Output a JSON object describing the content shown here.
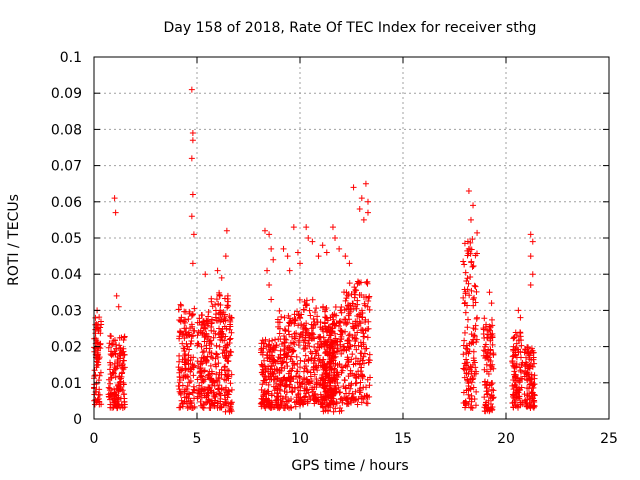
{
  "chart_data": {
    "type": "scatter",
    "title": "Day 158 of 2018, Rate Of TEC Index for receiver sthg",
    "xlabel": "GPS time / hours",
    "ylabel": "ROTI / TECUs",
    "xlim": [
      0,
      25
    ],
    "ylim": [
      0,
      0.1
    ],
    "xticks": [
      0,
      5,
      10,
      15,
      20,
      25
    ],
    "yticks": [
      0,
      0.01,
      0.02,
      0.03,
      0.04,
      0.05,
      0.06,
      0.07,
      0.08,
      0.09,
      0.1
    ],
    "grid": true,
    "marker": "+",
    "color": "#ff0000",
    "series": [
      {
        "name": "ROTI",
        "clusters": [
          {
            "x": [
              0.0,
              0.35
            ],
            "y": [
              0.004,
              0.029
            ]
          },
          {
            "x": [
              0.7,
              1.5
            ],
            "y": [
              0.003,
              0.023
            ]
          },
          {
            "x": [
              4.1,
              4.9
            ],
            "y": [
              0.003,
              0.032
            ]
          },
          {
            "x": [
              5.0,
              5.6
            ],
            "y": [
              0.003,
              0.03
            ]
          },
          {
            "x": [
              5.6,
              6.2
            ],
            "y": [
              0.003,
              0.035
            ]
          },
          {
            "x": [
              6.2,
              6.7
            ],
            "y": [
              0.002,
              0.034
            ]
          },
          {
            "x": [
              8.1,
              8.9
            ],
            "y": [
              0.003,
              0.022
            ]
          },
          {
            "x": [
              8.9,
              9.8
            ],
            "y": [
              0.003,
              0.03
            ]
          },
          {
            "x": [
              9.8,
              10.8
            ],
            "y": [
              0.004,
              0.033
            ]
          },
          {
            "x": [
              10.8,
              11.7
            ],
            "y": [
              0.004,
              0.029
            ]
          },
          {
            "x": [
              11.1,
              12.1
            ],
            "y": [
              0.002,
              0.031
            ]
          },
          {
            "x": [
              12.1,
              13.4
            ],
            "y": [
              0.004,
              0.038
            ]
          },
          {
            "x": [
              17.9,
              18.6
            ],
            "y": [
              0.003,
              0.052
            ]
          },
          {
            "x": [
              18.9,
              19.4
            ],
            "y": [
              0.002,
              0.028
            ]
          },
          {
            "x": [
              20.3,
              20.8
            ],
            "y": [
              0.003,
              0.024
            ]
          },
          {
            "x": [
              20.9,
              21.4
            ],
            "y": [
              0.003,
              0.02
            ]
          }
        ],
        "points": [
          [
            0.15,
            0.03
          ],
          [
            0.2,
            0.026
          ],
          [
            1.0,
            0.061
          ],
          [
            1.05,
            0.057
          ],
          [
            1.1,
            0.034
          ],
          [
            1.2,
            0.031
          ],
          [
            4.75,
            0.091
          ],
          [
            4.8,
            0.079
          ],
          [
            4.8,
            0.077
          ],
          [
            4.75,
            0.072
          ],
          [
            4.8,
            0.062
          ],
          [
            4.75,
            0.056
          ],
          [
            4.85,
            0.051
          ],
          [
            4.8,
            0.043
          ],
          [
            5.4,
            0.04
          ],
          [
            6.0,
            0.041
          ],
          [
            6.2,
            0.039
          ],
          [
            6.45,
            0.052
          ],
          [
            6.4,
            0.045
          ],
          [
            6.5,
            0.034
          ],
          [
            8.3,
            0.052
          ],
          [
            8.5,
            0.051
          ],
          [
            8.6,
            0.047
          ],
          [
            8.7,
            0.044
          ],
          [
            8.4,
            0.041
          ],
          [
            8.5,
            0.037
          ],
          [
            8.6,
            0.033
          ],
          [
            9.2,
            0.047
          ],
          [
            9.4,
            0.045
          ],
          [
            9.5,
            0.041
          ],
          [
            9.7,
            0.053
          ],
          [
            9.9,
            0.046
          ],
          [
            10.0,
            0.043
          ],
          [
            10.3,
            0.053
          ],
          [
            10.4,
            0.05
          ],
          [
            10.6,
            0.049
          ],
          [
            10.9,
            0.045
          ],
          [
            11.1,
            0.048
          ],
          [
            11.3,
            0.046
          ],
          [
            11.6,
            0.053
          ],
          [
            11.7,
            0.05
          ],
          [
            11.9,
            0.047
          ],
          [
            12.2,
            0.045
          ],
          [
            12.4,
            0.043
          ],
          [
            12.6,
            0.064
          ],
          [
            12.9,
            0.058
          ],
          [
            13.0,
            0.061
          ],
          [
            13.2,
            0.065
          ],
          [
            13.3,
            0.06
          ],
          [
            13.3,
            0.057
          ],
          [
            13.1,
            0.055
          ],
          [
            18.2,
            0.063
          ],
          [
            18.4,
            0.059
          ],
          [
            18.3,
            0.055
          ],
          [
            19.2,
            0.035
          ],
          [
            19.3,
            0.032
          ],
          [
            20.6,
            0.03
          ],
          [
            20.7,
            0.028
          ],
          [
            21.2,
            0.051
          ],
          [
            21.3,
            0.049
          ],
          [
            21.2,
            0.045
          ],
          [
            21.3,
            0.04
          ],
          [
            21.2,
            0.037
          ]
        ]
      }
    ]
  }
}
